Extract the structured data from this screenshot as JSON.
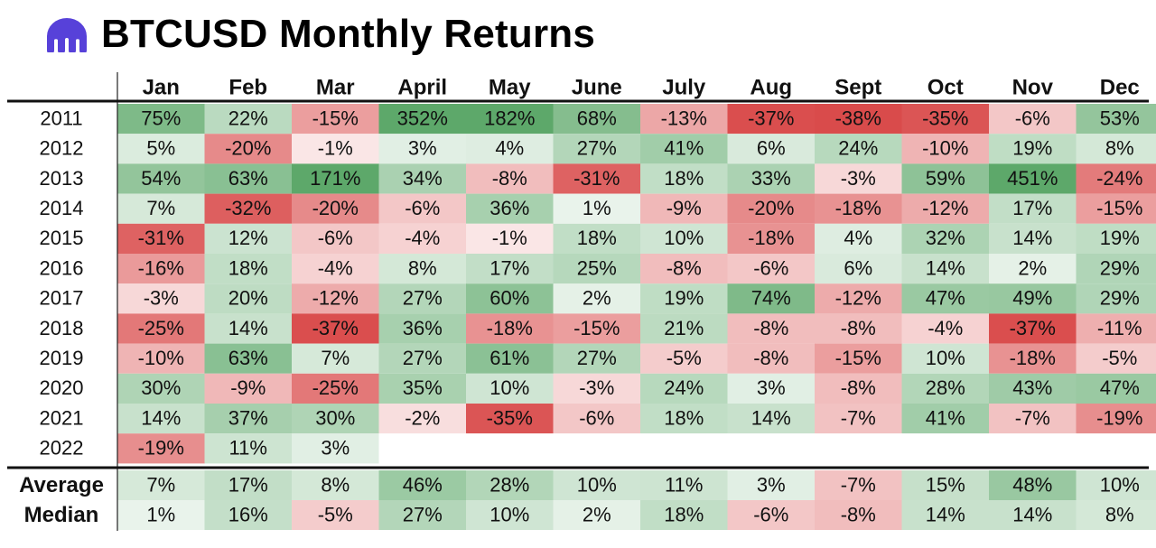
{
  "header": {
    "title": "BTCUSD Monthly Returns",
    "logo_icon": "kraken-logo-icon",
    "logo_color": "#5741D9"
  },
  "chart_data": {
    "type": "heatmap",
    "title": "BTCUSD Monthly Returns",
    "columns": [
      "Jan",
      "Feb",
      "Mar",
      "April",
      "May",
      "June",
      "July",
      "Aug",
      "Sept",
      "Oct",
      "Nov",
      "Dec"
    ],
    "rows": [
      {
        "label": "2011",
        "values": [
          75,
          22,
          -15,
          352,
          182,
          68,
          -13,
          -37,
          -38,
          -35,
          -6,
          53
        ]
      },
      {
        "label": "2012",
        "values": [
          5,
          -20,
          -1,
          3,
          4,
          27,
          41,
          6,
          24,
          -10,
          19,
          8
        ]
      },
      {
        "label": "2013",
        "values": [
          54,
          63,
          171,
          34,
          -8,
          -31,
          18,
          33,
          -3,
          59,
          451,
          -24
        ]
      },
      {
        "label": "2014",
        "values": [
          7,
          -32,
          -20,
          -6,
          36,
          1,
          -9,
          -20,
          -18,
          -12,
          17,
          -15
        ]
      },
      {
        "label": "2015",
        "values": [
          -31,
          12,
          -6,
          -4,
          -1,
          18,
          10,
          -18,
          4,
          32,
          14,
          19
        ]
      },
      {
        "label": "2016",
        "values": [
          -16,
          18,
          -4,
          8,
          17,
          25,
          -8,
          -6,
          6,
          14,
          2,
          29
        ]
      },
      {
        "label": "2017",
        "values": [
          -3,
          20,
          -12,
          27,
          60,
          2,
          19,
          74,
          -12,
          47,
          49,
          29
        ]
      },
      {
        "label": "2018",
        "values": [
          -25,
          14,
          -37,
          36,
          -18,
          -15,
          21,
          -8,
          -8,
          -4,
          -37,
          -11
        ]
      },
      {
        "label": "2019",
        "values": [
          -10,
          63,
          7,
          27,
          61,
          27,
          -5,
          -8,
          -15,
          10,
          -18,
          -5
        ]
      },
      {
        "label": "2020",
        "values": [
          30,
          -9,
          -25,
          35,
          10,
          -3,
          24,
          3,
          -8,
          28,
          43,
          47
        ]
      },
      {
        "label": "2021",
        "values": [
          14,
          37,
          30,
          -2,
          -35,
          -6,
          18,
          14,
          -7,
          41,
          -7,
          -19
        ]
      },
      {
        "label": "2022",
        "values": [
          -19,
          11,
          3,
          null,
          null,
          null,
          null,
          null,
          null,
          null,
          null,
          null
        ]
      }
    ],
    "summary_rows": [
      {
        "label": "Average",
        "values": [
          7,
          17,
          8,
          46,
          28,
          10,
          11,
          3,
          -7,
          15,
          48,
          10
        ]
      },
      {
        "label": "Median",
        "values": [
          1,
          16,
          -5,
          27,
          10,
          2,
          18,
          -6,
          -8,
          14,
          14,
          8
        ]
      }
    ],
    "value_suffix": "%",
    "colors": {
      "positive": "#5DA86A",
      "negative": "#D94A4A",
      "neutral": "#FFFFFF"
    }
  }
}
